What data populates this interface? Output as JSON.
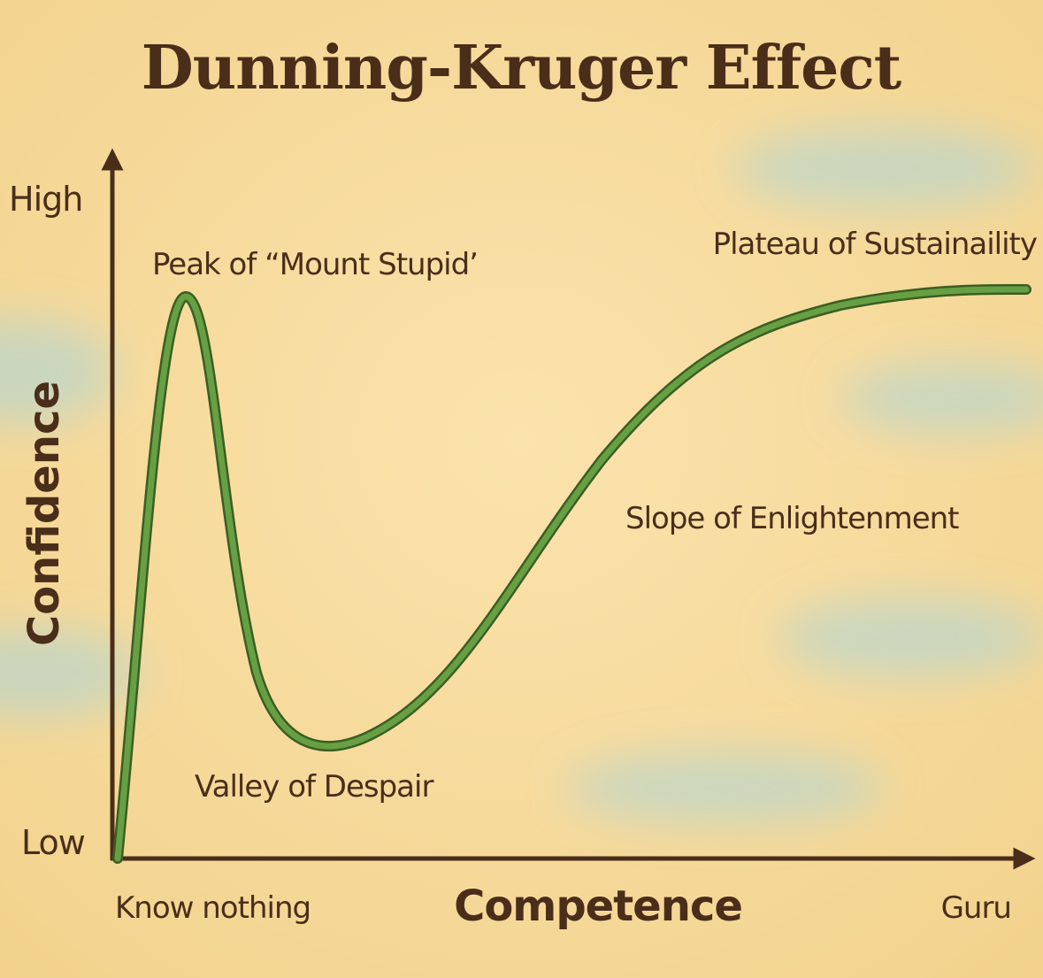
{
  "title": "Dunning-Kruger Effect",
  "y_axis": {
    "label": "Confidence",
    "high": "High",
    "low": "Low"
  },
  "x_axis": {
    "label": "Competence",
    "start": "Know nothing",
    "end": "Guru"
  },
  "annotations": [
    "Peak of “Mount Stupid’",
    "Valley of Despair",
    "Slope of Enlightenment",
    "Plateau of Sustainaility"
  ]
}
